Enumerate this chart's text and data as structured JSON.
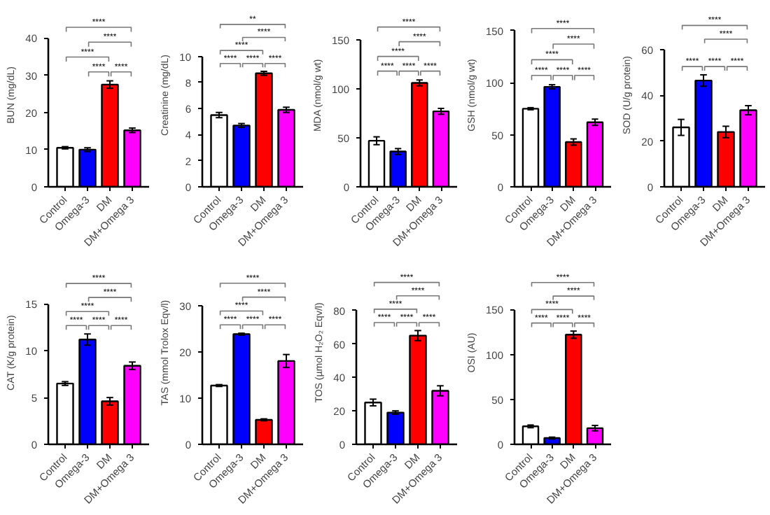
{
  "chart_data": [
    {
      "type": "bar",
      "ylabel": "BUN (mg/dL)",
      "categories": [
        "Control",
        "Omega-3",
        "DM",
        "DM+Omega 3"
      ],
      "values": [
        10.5,
        10,
        27.5,
        15.2
      ],
      "errors": [
        0.3,
        0.5,
        1,
        0.6
      ],
      "colors": [
        "#ffffff",
        "#0000ff",
        "#ff0000",
        "#ff00ff"
      ],
      "ylim": [
        0,
        40
      ],
      "yticks": [
        0,
        10,
        20,
        30,
        40
      ],
      "grid": false,
      "annotations": [
        "****",
        "****",
        "****",
        "****",
        "****"
      ]
    },
    {
      "type": "bar",
      "ylabel": "Creatinine (mg/dL)",
      "categories": [
        "Control",
        "Omega-3",
        "DM",
        "DM+Omega 3"
      ],
      "values": [
        5.5,
        4.7,
        8.7,
        5.9
      ],
      "errors": [
        0.2,
        0.15,
        0.15,
        0.2
      ],
      "colors": [
        "#ffffff",
        "#0000ff",
        "#ff0000",
        "#ff00ff"
      ],
      "ylim": [
        0,
        10
      ],
      "yticks": [
        0,
        2,
        4,
        6,
        8,
        10
      ],
      "grid": false,
      "annotations": [
        "****",
        "****",
        "****",
        "****",
        "****",
        "**"
      ]
    },
    {
      "type": "bar",
      "ylabel": "MDA (nmol/g wt)",
      "categories": [
        "Control",
        "Omega-3",
        "DM",
        "DM+Omega 3"
      ],
      "values": [
        47,
        36,
        106,
        77
      ],
      "errors": [
        4,
        3,
        3,
        3
      ],
      "colors": [
        "#ffffff",
        "#0000ff",
        "#ff0000",
        "#ff00ff"
      ],
      "ylim": [
        0,
        150
      ],
      "yticks": [
        0,
        50,
        100,
        150
      ],
      "grid": false,
      "annotations": [
        "****",
        "****",
        "****",
        "****",
        "****",
        "****"
      ]
    },
    {
      "type": "bar",
      "ylabel": "GSH (nmol/g wt)",
      "categories": [
        "Control",
        "Omega-3",
        "DM",
        "DM+Omega 3"
      ],
      "values": [
        75,
        96,
        43,
        62
      ],
      "errors": [
        1,
        2,
        3,
        3
      ],
      "colors": [
        "#ffffff",
        "#0000ff",
        "#ff0000",
        "#ff00ff"
      ],
      "ylim": [
        0,
        150
      ],
      "yticks": [
        0,
        50,
        100,
        150
      ],
      "grid": false,
      "annotations": [
        "****",
        "****",
        "****",
        "****",
        "****",
        "****"
      ]
    },
    {
      "type": "bar",
      "ylabel": "SOD (U/g protein)",
      "categories": [
        "Control",
        "Omega-3",
        "DM",
        "DM+Omega 3"
      ],
      "values": [
        26,
        46.5,
        24,
        33.5
      ],
      "errors": [
        3.5,
        2.5,
        2.5,
        2
      ],
      "colors": [
        "#ffffff",
        "#0000ff",
        "#ff0000",
        "#ff00ff"
      ],
      "ylim": [
        0,
        60
      ],
      "yticks": [
        0,
        20,
        40,
        60
      ],
      "grid": false,
      "annotations": [
        "****",
        "****",
        "****",
        "****",
        "****"
      ]
    },
    {
      "type": "bar",
      "ylabel": "CAT (K/g protein)",
      "categories": [
        "Control",
        "Omega-3",
        "DM",
        "DM+Omega 3"
      ],
      "values": [
        6.5,
        11.2,
        4.6,
        8.4
      ],
      "errors": [
        0.2,
        0.6,
        0.4,
        0.4
      ],
      "colors": [
        "#ffffff",
        "#0000ff",
        "#ff0000",
        "#ff00ff"
      ],
      "ylim": [
        0,
        15
      ],
      "yticks": [
        0,
        5,
        10,
        15
      ],
      "grid": false,
      "annotations": [
        "****",
        "****",
        "****",
        "****",
        "****",
        "****"
      ]
    },
    {
      "type": "bar",
      "ylabel": "TAS (mmol Trolox Eqv/l)",
      "categories": [
        "Control",
        "Omega-3",
        "DM",
        "DM+Omega 3"
      ],
      "values": [
        12.7,
        23.8,
        5.3,
        18
      ],
      "errors": [
        0.2,
        0.2,
        0.2,
        1.4
      ],
      "colors": [
        "#ffffff",
        "#0000ff",
        "#ff0000",
        "#ff00ff"
      ],
      "ylim": [
        0,
        30
      ],
      "yticks": [
        0,
        10,
        20,
        30
      ],
      "grid": false,
      "annotations": [
        "****",
        "****",
        "****",
        "****",
        "****",
        "****"
      ]
    },
    {
      "type": "bar",
      "ylabel": "TOS (µmol H₂O₂ Eqv/l)",
      "categories": [
        "Control",
        "Omega-3",
        "DM",
        "DM+Omega 3"
      ],
      "values": [
        25,
        19,
        65,
        32
      ],
      "errors": [
        2,
        1,
        3,
        3
      ],
      "colors": [
        "#ffffff",
        "#0000ff",
        "#ff0000",
        "#ff00ff"
      ],
      "ylim": [
        0,
        80
      ],
      "yticks": [
        0,
        20,
        40,
        60,
        80
      ],
      "grid": false,
      "annotations": [
        "****",
        "****",
        "****",
        "****",
        "****",
        "****"
      ]
    },
    {
      "type": "bar",
      "ylabel": "OSI (AU)",
      "categories": [
        "Control",
        "Omega-3",
        "DM",
        "DM+Omega 3"
      ],
      "values": [
        20,
        7,
        122,
        18
      ],
      "errors": [
        1.5,
        1,
        4,
        3
      ],
      "colors": [
        "#ffffff",
        "#0000ff",
        "#ff0000",
        "#ff00ff"
      ],
      "ylim": [
        0,
        150
      ],
      "yticks": [
        0,
        50,
        100,
        150
      ],
      "grid": false,
      "annotations": [
        "****",
        "****",
        "****",
        "****",
        "****",
        "****"
      ]
    }
  ]
}
